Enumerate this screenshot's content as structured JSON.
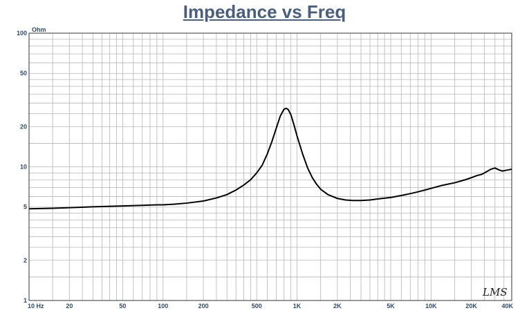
{
  "chart_data": {
    "type": "line",
    "title": "Impedance vs Freq",
    "ylabel": "Ohm",
    "xlabel": "",
    "x_scale": "log",
    "y_scale": "log",
    "xlim": [
      10,
      40000
    ],
    "ylim": [
      1,
      100
    ],
    "grid": true,
    "x_ticks": [
      {
        "value": 10,
        "label": "10 Hz"
      },
      {
        "value": 20,
        "label": "20"
      },
      {
        "value": 50,
        "label": "50"
      },
      {
        "value": 100,
        "label": "100"
      },
      {
        "value": 200,
        "label": "200"
      },
      {
        "value": 500,
        "label": "500"
      },
      {
        "value": 1000,
        "label": "1K"
      },
      {
        "value": 2000,
        "label": "2K"
      },
      {
        "value": 5000,
        "label": "5K"
      },
      {
        "value": 10000,
        "label": "10K"
      },
      {
        "value": 20000,
        "label": "20K"
      },
      {
        "value": 40000,
        "label": "40K"
      }
    ],
    "y_ticks": [
      {
        "value": 1,
        "label": "1"
      },
      {
        "value": 2,
        "label": "2"
      },
      {
        "value": 5,
        "label": "5"
      },
      {
        "value": 10,
        "label": "10"
      },
      {
        "value": 20,
        "label": "20"
      },
      {
        "value": 50,
        "label": "50"
      },
      {
        "value": 100,
        "label": "100"
      }
    ],
    "series": [
      {
        "color": "#000000",
        "x": [
          10,
          15,
          20,
          30,
          50,
          70,
          90,
          100,
          120,
          150,
          200,
          250,
          300,
          350,
          400,
          450,
          500,
          550,
          600,
          650,
          700,
          750,
          800,
          830,
          860,
          900,
          950,
          1000,
          1100,
          1200,
          1300,
          1400,
          1500,
          1700,
          2000,
          2300,
          2600,
          3000,
          3500,
          4000,
          5000,
          6000,
          7000,
          8000,
          9000,
          10000,
          12000,
          15000,
          18000,
          20000,
          22000,
          24000,
          26000,
          28000,
          30000,
          32000,
          34000,
          36000,
          38000,
          40000
        ],
        "values": [
          4.85,
          4.9,
          4.95,
          5.02,
          5.1,
          5.15,
          5.2,
          5.2,
          5.25,
          5.35,
          5.55,
          5.85,
          6.2,
          6.7,
          7.3,
          8.0,
          9.0,
          10.3,
          12.5,
          15.5,
          19.5,
          24.0,
          27.0,
          27.4,
          26.8,
          24.5,
          20.5,
          17.0,
          12.5,
          9.8,
          8.3,
          7.4,
          6.8,
          6.2,
          5.8,
          5.65,
          5.6,
          5.6,
          5.65,
          5.75,
          5.9,
          6.1,
          6.3,
          6.5,
          6.7,
          6.9,
          7.25,
          7.6,
          8.0,
          8.3,
          8.6,
          8.8,
          9.2,
          9.6,
          9.8,
          9.5,
          9.3,
          9.4,
          9.5,
          9.6
        ]
      }
    ]
  },
  "watermark": "LMS",
  "colors": {
    "title": "#4a5f7e",
    "grid": "#b5b5b5",
    "tick_label": "#2f4a6b",
    "curve": "#000000",
    "frame": "#333333"
  }
}
